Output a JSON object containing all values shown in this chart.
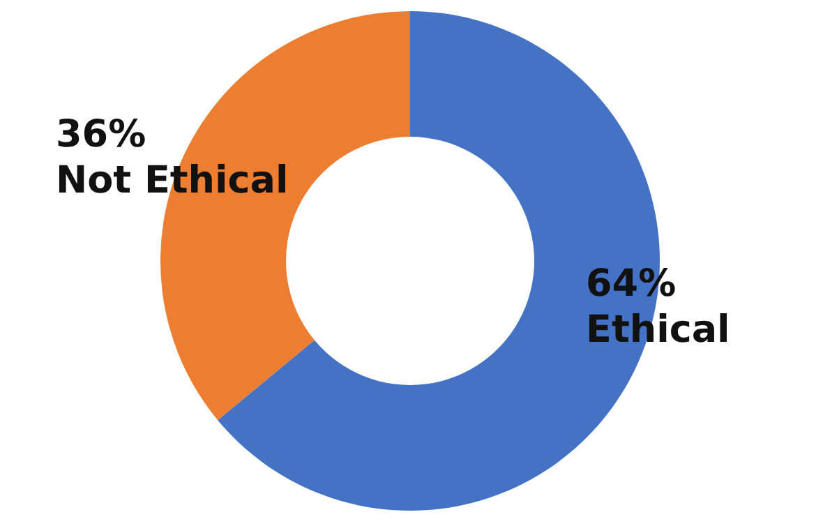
{
  "chart_data": {
    "type": "donut",
    "categories": [
      "Ethical",
      "Not Ethical"
    ],
    "values": [
      64,
      36
    ],
    "colors": [
      "#4472c4",
      "#ed7d31"
    ],
    "value_labels": [
      "64%",
      "36%"
    ],
    "legend": false
  }
}
